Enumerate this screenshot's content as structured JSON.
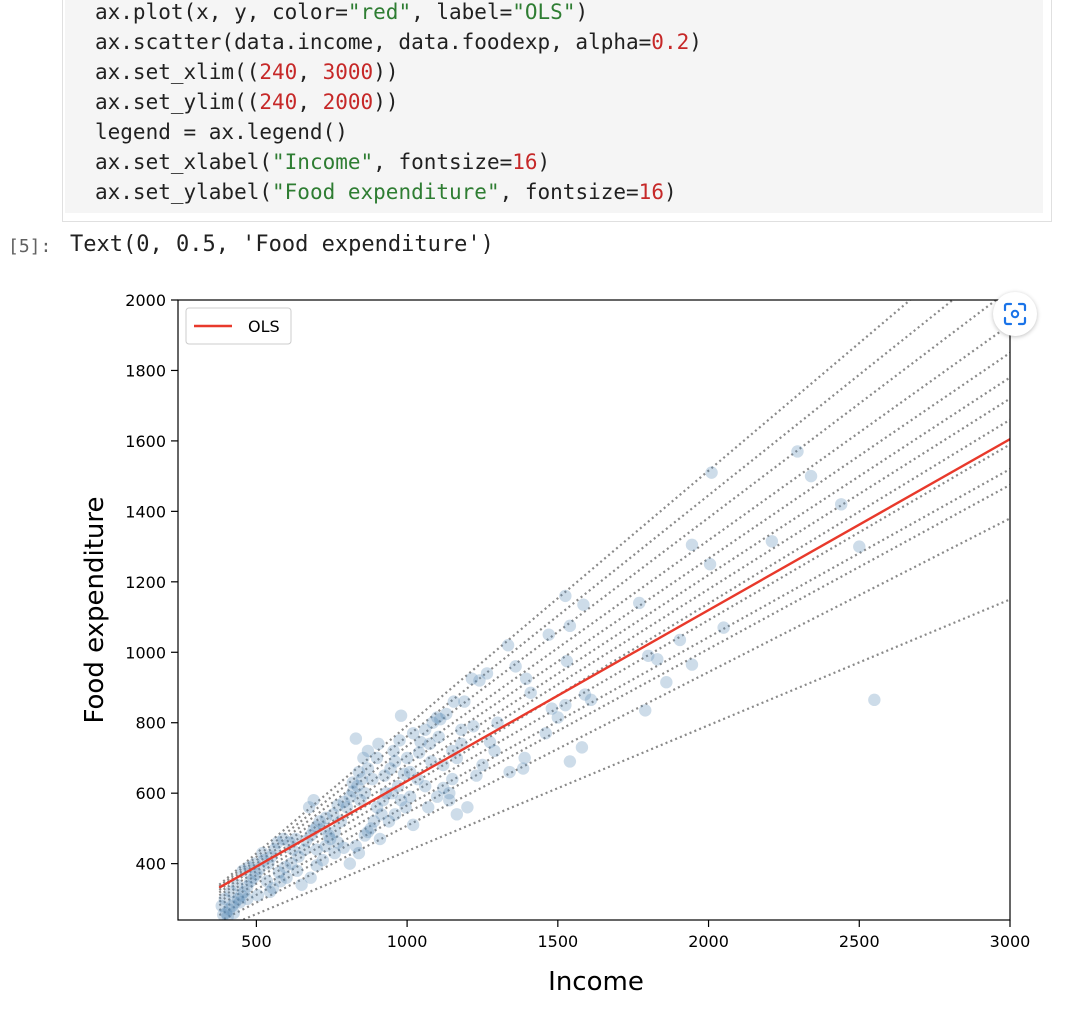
{
  "code_cell": {
    "lines": [
      [
        {
          "t": "ax.plot(x, y, color="
        },
        {
          "t": "\"red\"",
          "c": "str"
        },
        {
          "t": ", label="
        },
        {
          "t": "\"OLS\"",
          "c": "str"
        },
        {
          "t": ")"
        }
      ],
      [
        {
          "t": "ax.scatter(data.income, data.foodexp, alpha="
        },
        {
          "t": "0.2",
          "c": "num"
        },
        {
          "t": ")"
        }
      ],
      [
        {
          "t": "ax.set_xlim(("
        },
        {
          "t": "240",
          "c": "num"
        },
        {
          "t": ", "
        },
        {
          "t": "3000",
          "c": "num"
        },
        {
          "t": "))"
        }
      ],
      [
        {
          "t": "ax.set_ylim(("
        },
        {
          "t": "240",
          "c": "num"
        },
        {
          "t": ", "
        },
        {
          "t": "2000",
          "c": "num"
        },
        {
          "t": "))"
        }
      ],
      [
        {
          "t": "legend = ax.legend()"
        }
      ],
      [
        {
          "t": "ax.set_xlabel("
        },
        {
          "t": "\"Income\"",
          "c": "str"
        },
        {
          "t": ", fontsize="
        },
        {
          "t": "16",
          "c": "num"
        },
        {
          "t": ")"
        }
      ],
      [
        {
          "t": "ax.set_ylabel("
        },
        {
          "t": "\"Food expenditure\"",
          "c": "str"
        },
        {
          "t": ", fontsize="
        },
        {
          "t": "16",
          "c": "num"
        },
        {
          "t": ")"
        }
      ]
    ]
  },
  "output": {
    "prompt": "[5]:",
    "text": "Text(0, 0.5, 'Food expenditure')"
  },
  "expand_icon": "expand-image-icon",
  "colors": {
    "ols": "#e8392b",
    "scatter": "#5b8ab5",
    "quantile": "#8a8a8a",
    "string": "#2e7d32",
    "number": "#c62828"
  },
  "chart_data": {
    "type": "scatter",
    "xlabel": "Income",
    "ylabel": "Food expenditure",
    "xlim": [
      240,
      3000
    ],
    "ylim": [
      240,
      2000
    ],
    "xticks": [
      500,
      1000,
      1500,
      2000,
      2500,
      3000
    ],
    "yticks": [
      400,
      600,
      800,
      1000,
      1200,
      1400,
      1600,
      1800,
      2000
    ],
    "legend": {
      "position": "top-left",
      "entries": [
        "OLS"
      ]
    },
    "ols_line": {
      "label": "OLS",
      "x": [
        377,
        3000
      ],
      "y": [
        332,
        1605
      ]
    },
    "dotted_lines": [
      {
        "x": [
          377,
          3000
        ],
        "y": [
          213,
          1150
        ]
      },
      {
        "x": [
          377,
          3000
        ],
        "y": [
          236,
          1380
        ]
      },
      {
        "x": [
          377,
          3000
        ],
        "y": [
          254,
          1475
        ]
      },
      {
        "x": [
          377,
          3000
        ],
        "y": [
          268,
          1520
        ]
      },
      {
        "x": [
          377,
          3000
        ],
        "y": [
          282,
          1590
        ]
      },
      {
        "x": [
          377,
          3000
        ],
        "y": [
          292,
          1660
        ]
      },
      {
        "x": [
          377,
          3000
        ],
        "y": [
          301,
          1720
        ]
      },
      {
        "x": [
          377,
          3000
        ],
        "y": [
          310,
          1780
        ]
      },
      {
        "x": [
          377,
          3000
        ],
        "y": [
          318,
          1850
        ]
      },
      {
        "x": [
          377,
          3000
        ],
        "y": [
          325,
          1930
        ]
      },
      {
        "x": [
          377,
          3000
        ],
        "y": [
          330,
          2030
        ]
      },
      {
        "x": [
          377,
          3000
        ],
        "y": [
          335,
          2130
        ]
      },
      {
        "x": [
          377,
          3000
        ],
        "y": [
          340,
          2240
        ]
      }
    ],
    "points": [
      [
        2010,
        1510
      ],
      [
        2295,
        1570
      ],
      [
        2340,
        1500
      ],
      [
        2440,
        1420
      ],
      [
        2500,
        1300
      ],
      [
        1945,
        1305
      ],
      [
        2005,
        1250
      ],
      [
        2210,
        1315
      ],
      [
        1525,
        1160
      ],
      [
        1585,
        1135
      ],
      [
        1770,
        1140
      ],
      [
        1540,
        1075
      ],
      [
        1335,
        1020
      ],
      [
        1470,
        1050
      ],
      [
        1530,
        975
      ],
      [
        1360,
        960
      ],
      [
        1800,
        990
      ],
      [
        1830,
        980
      ],
      [
        1905,
        1035
      ],
      [
        2050,
        1070
      ],
      [
        1945,
        965
      ],
      [
        1860,
        915
      ],
      [
        1610,
        865
      ],
      [
        1590,
        880
      ],
      [
        1525,
        850
      ],
      [
        1500,
        815
      ],
      [
        1395,
        925
      ],
      [
        1410,
        885
      ],
      [
        1265,
        940
      ],
      [
        1240,
        920
      ],
      [
        1215,
        925
      ],
      [
        1190,
        860
      ],
      [
        1155,
        860
      ],
      [
        1130,
        825
      ],
      [
        1110,
        810
      ],
      [
        1100,
        815
      ],
      [
        1180,
        780
      ],
      [
        1220,
        790
      ],
      [
        1275,
        745
      ],
      [
        1300,
        800
      ],
      [
        1340,
        660
      ],
      [
        1385,
        670
      ],
      [
        1390,
        700
      ],
      [
        1460,
        770
      ],
      [
        1480,
        840
      ],
      [
        1540,
        690
      ],
      [
        1580,
        730
      ],
      [
        1790,
        835
      ],
      [
        2550,
        865
      ],
      [
        980,
        820
      ],
      [
        830,
        755
      ],
      [
        1045,
        745
      ],
      [
        1075,
        740
      ],
      [
        1060,
        780
      ],
      [
        1020,
        770
      ],
      [
        1000,
        700
      ],
      [
        1040,
        715
      ],
      [
        1080,
        690
      ],
      [
        1120,
        680
      ],
      [
        1165,
        700
      ],
      [
        1150,
        640
      ],
      [
        1140,
        600
      ],
      [
        1120,
        615
      ],
      [
        1100,
        590
      ],
      [
        1060,
        620
      ],
      [
        1035,
        640
      ],
      [
        1010,
        660
      ],
      [
        990,
        655
      ],
      [
        960,
        690
      ],
      [
        945,
        670
      ],
      [
        925,
        650
      ],
      [
        900,
        700
      ],
      [
        885,
        640
      ],
      [
        870,
        670
      ],
      [
        850,
        640
      ],
      [
        835,
        620
      ],
      [
        820,
        605
      ],
      [
        810,
        590
      ],
      [
        790,
        575
      ],
      [
        770,
        565
      ],
      [
        755,
        540
      ],
      [
        730,
        530
      ],
      [
        710,
        520
      ],
      [
        700,
        505
      ],
      [
        690,
        495
      ],
      [
        680,
        480
      ],
      [
        675,
        560
      ],
      [
        690,
        580
      ],
      [
        725,
        500
      ],
      [
        745,
        470
      ],
      [
        770,
        460
      ],
      [
        790,
        445
      ],
      [
        810,
        400
      ],
      [
        840,
        430
      ],
      [
        870,
        490
      ],
      [
        890,
        520
      ],
      [
        900,
        560
      ],
      [
        920,
        580
      ],
      [
        950,
        600
      ],
      [
        970,
        620
      ],
      [
        980,
        580
      ],
      [
        995,
        560
      ],
      [
        1020,
        510
      ],
      [
        960,
        540
      ],
      [
        940,
        520
      ],
      [
        860,
        480
      ],
      [
        830,
        450
      ],
      [
        760,
        430
      ],
      [
        720,
        410
      ],
      [
        700,
        395
      ],
      [
        680,
        360
      ],
      [
        650,
        340
      ],
      [
        640,
        420
      ],
      [
        620,
        440
      ],
      [
        610,
        460
      ],
      [
        590,
        470
      ],
      [
        570,
        460
      ],
      [
        560,
        440
      ],
      [
        550,
        420
      ],
      [
        540,
        400
      ],
      [
        525,
        410
      ],
      [
        510,
        385
      ],
      [
        500,
        370
      ],
      [
        490,
        360
      ],
      [
        480,
        350
      ],
      [
        470,
        335
      ],
      [
        460,
        320
      ],
      [
        450,
        310
      ],
      [
        440,
        300
      ],
      [
        430,
        290
      ],
      [
        420,
        280
      ],
      [
        410,
        270
      ],
      [
        400,
        260
      ],
      [
        390,
        255
      ],
      [
        385,
        280
      ],
      [
        395,
        300
      ],
      [
        415,
        320
      ],
      [
        435,
        340
      ],
      [
        455,
        380
      ],
      [
        475,
        390
      ],
      [
        495,
        400
      ],
      [
        520,
        430
      ],
      [
        535,
        350
      ],
      [
        555,
        330
      ],
      [
        575,
        375
      ],
      [
        595,
        390
      ],
      [
        615,
        400
      ],
      [
        635,
        380
      ],
      [
        660,
        440
      ],
      [
        600,
        360
      ],
      [
        580,
        350
      ],
      [
        545,
        320
      ],
      [
        505,
        310
      ],
      [
        470,
        300
      ],
      [
        445,
        290
      ],
      [
        425,
        260
      ],
      [
        405,
        250
      ],
      [
        1165,
        540
      ],
      [
        1140,
        580
      ],
      [
        1200,
        560
      ],
      [
        1250,
        680
      ],
      [
        1290,
        720
      ],
      [
        1230,
        650
      ],
      [
        1180,
        740
      ],
      [
        1105,
        760
      ],
      [
        1085,
        800
      ],
      [
        860,
        600
      ],
      [
        845,
        580
      ],
      [
        915,
        540
      ],
      [
        930,
        600
      ],
      [
        1010,
        590
      ],
      [
        1070,
        560
      ],
      [
        1150,
        720
      ],
      [
        910,
        470
      ],
      [
        880,
        500
      ],
      [
        780,
        520
      ],
      [
        740,
        480
      ],
      [
        665,
        465
      ],
      [
        630,
        470
      ],
      [
        700,
        440
      ],
      [
        730,
        450
      ],
      [
        760,
        490
      ],
      [
        800,
        560
      ],
      [
        820,
        630
      ],
      [
        840,
        660
      ],
      [
        855,
        700
      ],
      [
        870,
        720
      ],
      [
        905,
        740
      ],
      [
        955,
        720
      ],
      [
        975,
        750
      ]
    ]
  }
}
